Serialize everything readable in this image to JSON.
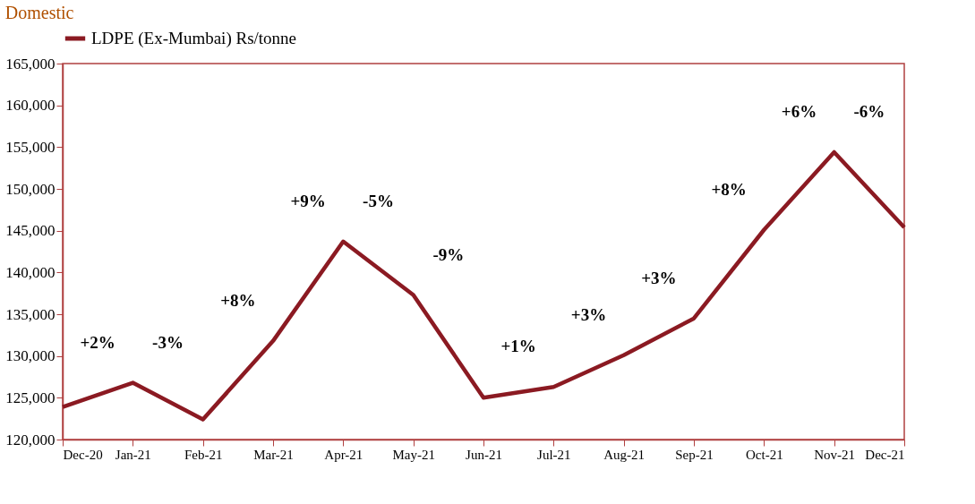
{
  "chart_data": {
    "type": "line",
    "title": "Domestic",
    "categories": [
      "Dec-20",
      "Jan-21",
      "Feb-21",
      "Mar-21",
      "Apr-21",
      "May-21",
      "Jun-21",
      "Jul-21",
      "Aug-21",
      "Sep-21",
      "Oct-21",
      "Nov-21",
      "Dec-21"
    ],
    "series": [
      {
        "name": "LDPE (Ex-Mumbai) Rs/tonne",
        "color": "#8b1a22",
        "values": [
          123900,
          126800,
          122400,
          131800,
          143700,
          137300,
          125000,
          126300,
          130100,
          134500,
          145100,
          154400,
          145400
        ]
      }
    ],
    "ylim": [
      120000,
      165000
    ],
    "yticks": [
      {
        "value": 120000,
        "label": "120,000"
      },
      {
        "value": 125000,
        "label": "125,000"
      },
      {
        "value": 130000,
        "label": "130,000"
      },
      {
        "value": 135000,
        "label": "135,000"
      },
      {
        "value": 140000,
        "label": "140,000"
      },
      {
        "value": 145000,
        "label": "145,000"
      },
      {
        "value": 150000,
        "label": "150,000"
      },
      {
        "value": 155000,
        "label": "155,000"
      },
      {
        "value": 160000,
        "label": "160,000"
      },
      {
        "value": 165000,
        "label": "165,000"
      }
    ],
    "grid": false,
    "legend": "top",
    "marker": "none",
    "line_style": "solid",
    "annotations": [
      "+2%",
      "-3%",
      "+8%",
      "+9%",
      "-5%",
      "-9%",
      "+1%",
      "+3%",
      "+3%",
      "+8%",
      "+6%",
      "-6%"
    ]
  }
}
